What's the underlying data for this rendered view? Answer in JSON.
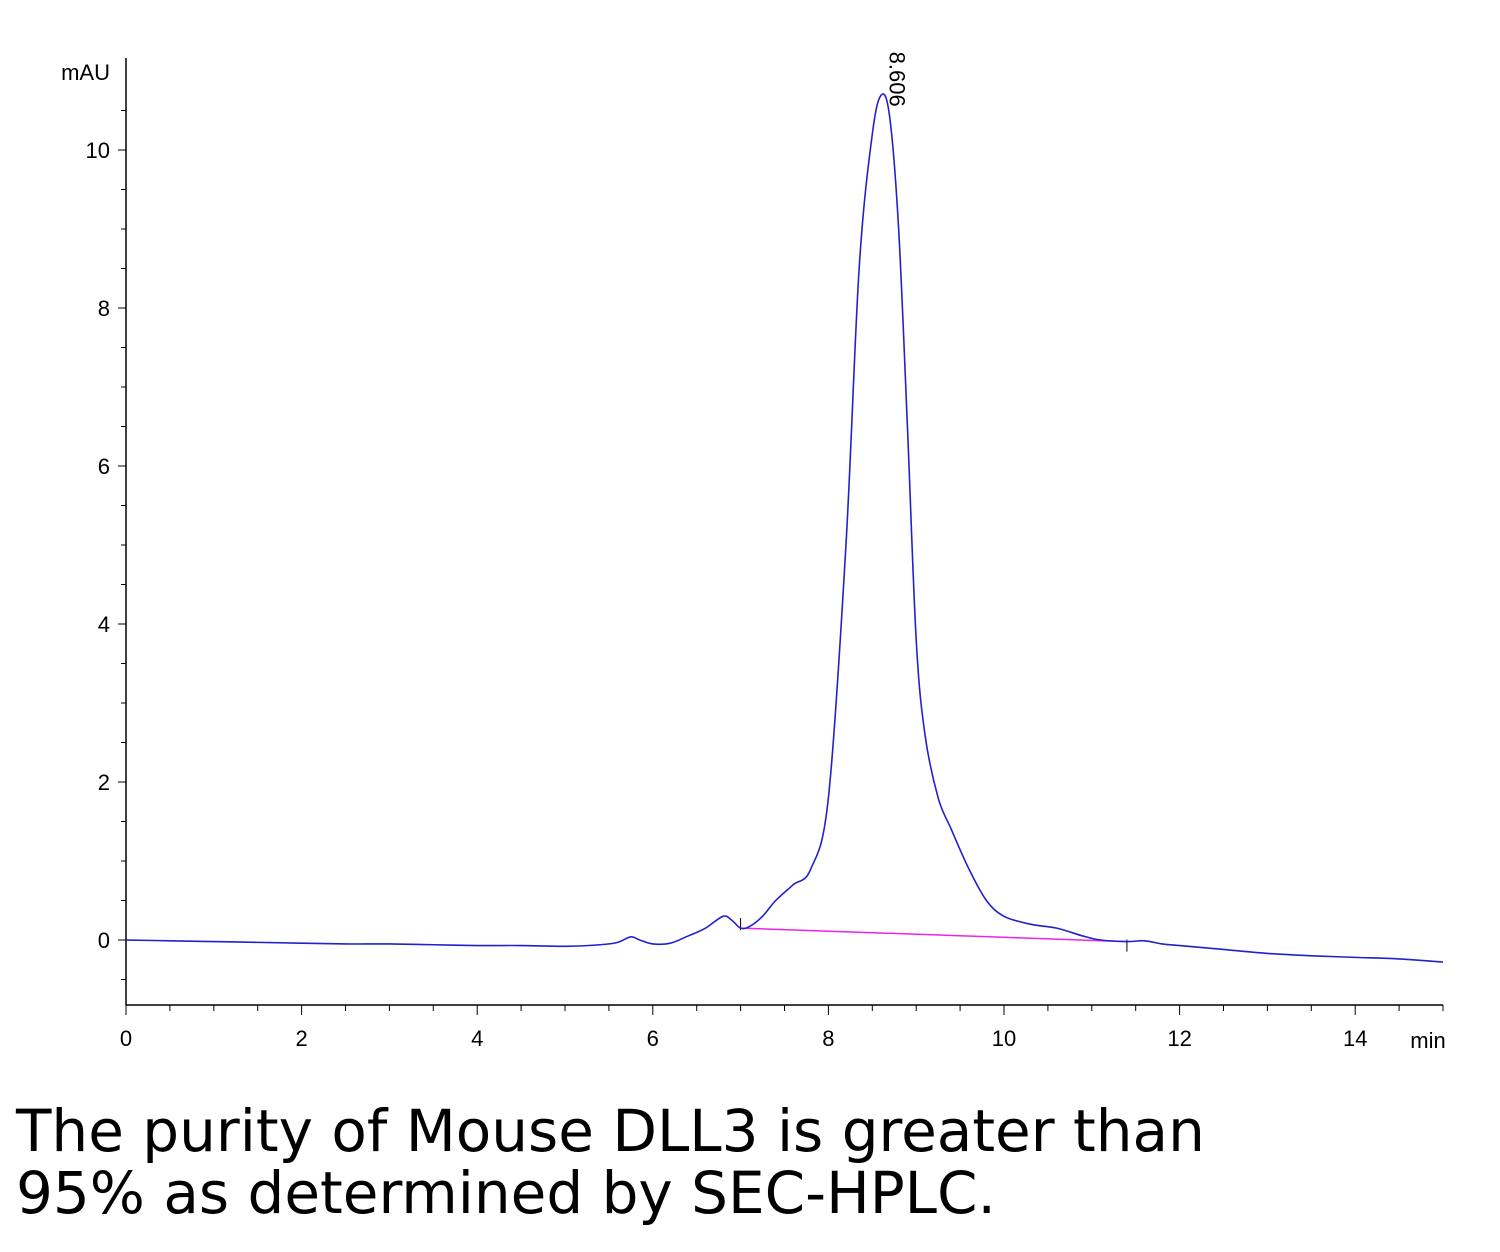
{
  "chart_data": {
    "type": "line",
    "title": "",
    "xlabel": "min",
    "ylabel": "mAU",
    "xlim": [
      0,
      15
    ],
    "ylim": [
      -0.8,
      11
    ],
    "x_ticks": [
      0,
      2,
      4,
      6,
      8,
      10,
      12,
      14
    ],
    "x_tick_labels": [
      "0",
      "2",
      "4",
      "6",
      "8",
      "10",
      "12",
      "14"
    ],
    "y_ticks": [
      0,
      2,
      4,
      6,
      8,
      10
    ],
    "y_tick_labels": [
      "0",
      "2",
      "4",
      "6",
      "8",
      "10"
    ],
    "grid": false,
    "series": [
      {
        "color": "#2222cc",
        "x": [
          0,
          0.5,
          1,
          1.5,
          2,
          2.5,
          3,
          3.5,
          4,
          4.5,
          5,
          5.4,
          5.6,
          5.75,
          5.85,
          6.0,
          6.2,
          6.4,
          6.6,
          6.8,
          6.9,
          7.0,
          7.1,
          7.25,
          7.4,
          7.6,
          7.8,
          8.0,
          8.2,
          8.35,
          8.5,
          8.606,
          8.7,
          8.8,
          8.9,
          9.0,
          9.1,
          9.25,
          9.4,
          9.6,
          9.8,
          10.0,
          10.3,
          10.6,
          10.9,
          11.1,
          11.4,
          11.6,
          11.8,
          12.0,
          12.5,
          13.0,
          13.5,
          14.0,
          14.5,
          15.0
        ],
        "y": [
          0.0,
          -0.01,
          -0.02,
          -0.03,
          -0.04,
          -0.05,
          -0.05,
          -0.06,
          -0.07,
          -0.07,
          -0.08,
          -0.06,
          -0.03,
          0.04,
          0.0,
          -0.05,
          -0.04,
          0.05,
          0.15,
          0.3,
          0.25,
          0.15,
          0.17,
          0.3,
          0.5,
          0.7,
          0.9,
          1.8,
          5.0,
          8.5,
          10.2,
          10.7,
          10.4,
          9.0,
          6.5,
          3.8,
          2.6,
          1.8,
          1.4,
          0.9,
          0.5,
          0.3,
          0.2,
          0.15,
          0.05,
          0.0,
          -0.02,
          -0.01,
          -0.05,
          -0.07,
          -0.12,
          -0.17,
          -0.2,
          -0.22,
          -0.24,
          -0.28
        ]
      }
    ],
    "baseline": {
      "color": "#ee22ee",
      "x": [
        7.0,
        11.4
      ],
      "y": [
        0.15,
        -0.02
      ]
    },
    "annotations": [
      {
        "text": "8.606",
        "x": 8.606,
        "y": 10.7
      }
    ]
  },
  "caption": {
    "line1": "The purity of Mouse DLL3 is greater than",
    "line2": "95% as determined by SEC-HPLC."
  }
}
